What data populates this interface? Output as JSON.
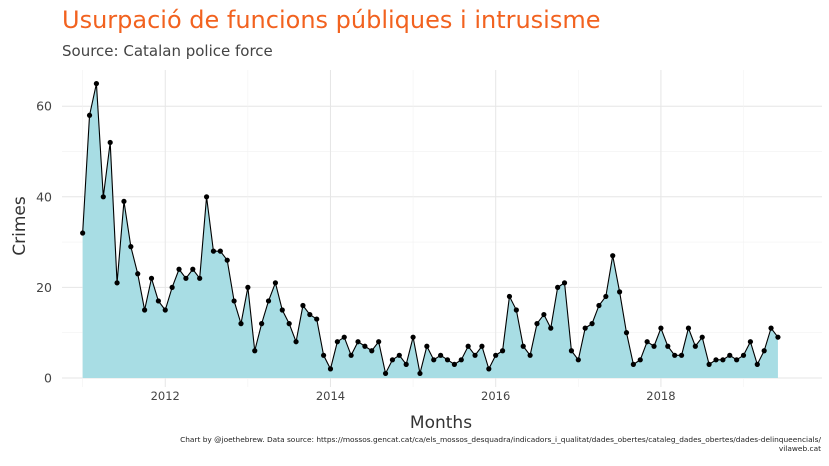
{
  "chart_data": {
    "type": "area",
    "title": "Usurpació de funcions públiques i intrusisme",
    "subtitle": "Source: Catalan police force",
    "xlabel": "Months",
    "ylabel": "Crimes",
    "x_tick_labels": [
      "2012",
      "2014",
      "2016",
      "2018"
    ],
    "y_tick_labels": [
      "0",
      "20",
      "40",
      "60"
    ],
    "x_ticks": [
      2012,
      2014,
      2016,
      2018
    ],
    "y_ticks": [
      0,
      20,
      40,
      60
    ],
    "xlim": [
      2010.75,
      2019.95
    ],
    "ylim": [
      -2,
      68
    ],
    "grid": true,
    "fill_color": "#a8dde4",
    "line_color": "#000000",
    "title_color": "#f2621f",
    "start_year": 2011,
    "caption_line1": "Chart by @joethebrew. Data source: https://mossos.gencat.cat/ca/els_mossos_desquadra/indicadors_i_qualitat/dades_obertes/cataleg_dades_obertes/dades-delinqueencials/",
    "caption_line2": "vilaweb.cat",
    "values": [
      32,
      58,
      65,
      40,
      52,
      21,
      39,
      29,
      23,
      15,
      22,
      17,
      15,
      20,
      24,
      22,
      24,
      22,
      40,
      28,
      28,
      26,
      17,
      12,
      20,
      6,
      12,
      17,
      21,
      15,
      12,
      8,
      16,
      14,
      13,
      5,
      2,
      8,
      9,
      5,
      8,
      7,
      6,
      8,
      1,
      4,
      5,
      3,
      9,
      1,
      7,
      4,
      5,
      4,
      3,
      4,
      7,
      5,
      7,
      2,
      5,
      6,
      18,
      15,
      7,
      5,
      12,
      14,
      11,
      20,
      21,
      6,
      4,
      11,
      12,
      16,
      18,
      27,
      19,
      10,
      3,
      4,
      8,
      7,
      11,
      7,
      5,
      5,
      11,
      7,
      9,
      3,
      4,
      4,
      5,
      4,
      5,
      8,
      3,
      6,
      11,
      9
    ]
  }
}
